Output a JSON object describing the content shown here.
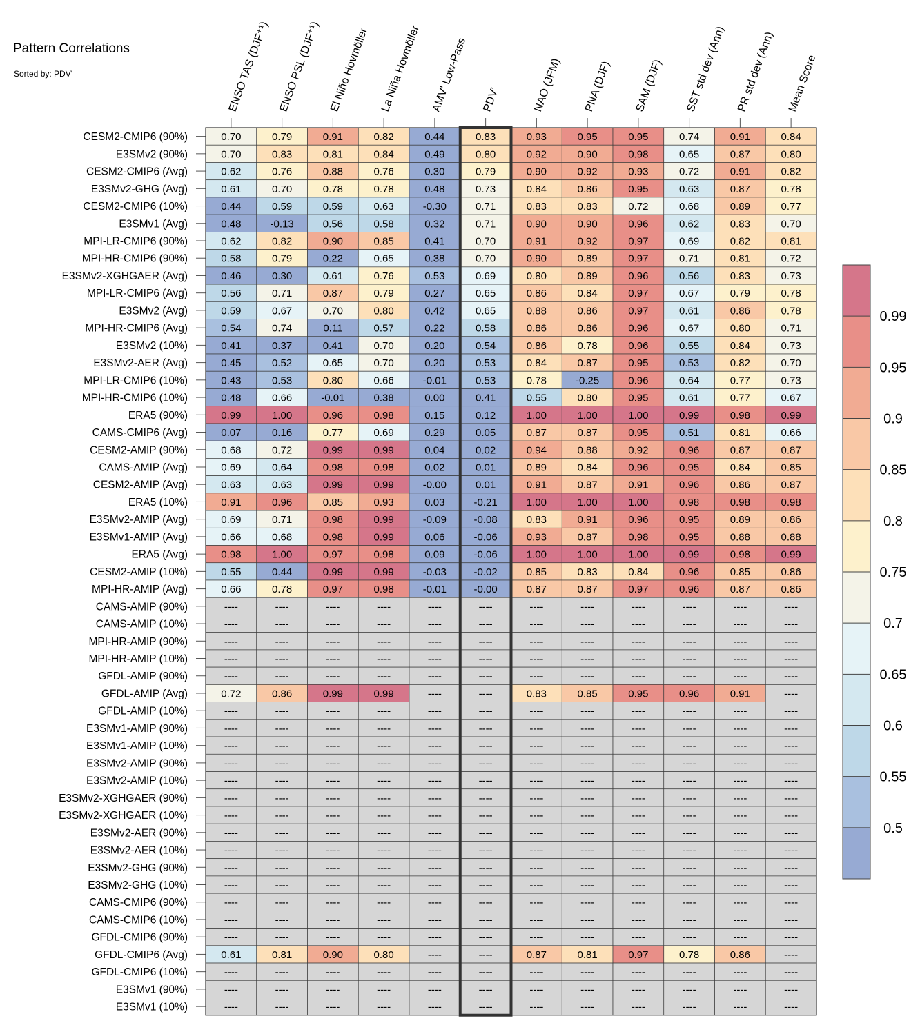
{
  "title": "Pattern Correlations",
  "subtitle": "Sorted by: PDV'",
  "chart_data": {
    "type": "heatmap",
    "title": "Pattern Correlations",
    "subtitle": "Sorted by: PDV'",
    "columns": [
      "ENSO TAS (DJF⁺¹)",
      "ENSO PSL (DJF⁺¹)",
      "El Niño Hovmöller",
      "La Niña Hovmöller",
      "AMV' Low-Pass",
      "PDV'",
      "NAO (JFM)",
      "PNA (DJF)",
      "SAM (DJF)",
      "SST std dev (Ann)",
      "PR std dev (Ann)",
      "Mean Score"
    ],
    "highlighted_column": "PDV'",
    "missing_label": "----",
    "rows": [
      {
        "name": "CESM2-CMIP6 (90%)",
        "values": [
          "0.70",
          "0.79",
          "0.91",
          "0.82",
          "0.44",
          "0.83",
          "0.93",
          "0.95",
          "0.95",
          "0.74",
          "0.91",
          "0.84"
        ]
      },
      {
        "name": "E3SMv2 (90%)",
        "values": [
          "0.70",
          "0.83",
          "0.81",
          "0.84",
          "0.49",
          "0.80",
          "0.92",
          "0.90",
          "0.98",
          "0.65",
          "0.87",
          "0.80"
        ]
      },
      {
        "name": "CESM2-CMIP6 (Avg)",
        "values": [
          "0.62",
          "0.76",
          "0.88",
          "0.76",
          "0.30",
          "0.79",
          "0.90",
          "0.92",
          "0.93",
          "0.72",
          "0.91",
          "0.82"
        ]
      },
      {
        "name": "E3SMv2-GHG (Avg)",
        "values": [
          "0.61",
          "0.70",
          "0.78",
          "0.78",
          "0.48",
          "0.73",
          "0.84",
          "0.86",
          "0.95",
          "0.63",
          "0.87",
          "0.78"
        ]
      },
      {
        "name": "CESM2-CMIP6 (10%)",
        "values": [
          "0.44",
          "0.59",
          "0.59",
          "0.63",
          "-0.30",
          "0.71",
          "0.83",
          "0.83",
          "0.72",
          "0.68",
          "0.89",
          "0.77"
        ]
      },
      {
        "name": "E3SMv1 (Avg)",
        "values": [
          "0.48",
          "-0.13",
          "0.56",
          "0.58",
          "0.32",
          "0.71",
          "0.90",
          "0.90",
          "0.96",
          "0.62",
          "0.83",
          "0.70"
        ]
      },
      {
        "name": "MPI-LR-CMIP6 (90%)",
        "values": [
          "0.62",
          "0.82",
          "0.90",
          "0.85",
          "0.41",
          "0.70",
          "0.91",
          "0.92",
          "0.97",
          "0.69",
          "0.82",
          "0.81"
        ]
      },
      {
        "name": "MPI-HR-CMIP6 (90%)",
        "values": [
          "0.58",
          "0.79",
          "0.22",
          "0.65",
          "0.38",
          "0.70",
          "0.90",
          "0.89",
          "0.97",
          "0.71",
          "0.81",
          "0.72"
        ]
      },
      {
        "name": "E3SMv2-XGHGAER (Avg)",
        "values": [
          "0.46",
          "0.30",
          "0.61",
          "0.76",
          "0.53",
          "0.69",
          "0.80",
          "0.89",
          "0.96",
          "0.56",
          "0.83",
          "0.73"
        ]
      },
      {
        "name": "MPI-LR-CMIP6 (Avg)",
        "values": [
          "0.56",
          "0.71",
          "0.87",
          "0.79",
          "0.27",
          "0.65",
          "0.86",
          "0.84",
          "0.97",
          "0.67",
          "0.79",
          "0.78"
        ]
      },
      {
        "name": "E3SMv2 (Avg)",
        "values": [
          "0.59",
          "0.67",
          "0.70",
          "0.80",
          "0.42",
          "0.65",
          "0.88",
          "0.86",
          "0.97",
          "0.61",
          "0.86",
          "0.78"
        ]
      },
      {
        "name": "MPI-HR-CMIP6 (Avg)",
        "values": [
          "0.54",
          "0.74",
          "0.11",
          "0.57",
          "0.22",
          "0.58",
          "0.86",
          "0.86",
          "0.96",
          "0.67",
          "0.80",
          "0.71"
        ]
      },
      {
        "name": "E3SMv2 (10%)",
        "values": [
          "0.41",
          "0.37",
          "0.41",
          "0.70",
          "0.20",
          "0.54",
          "0.86",
          "0.78",
          "0.96",
          "0.55",
          "0.84",
          "0.73"
        ]
      },
      {
        "name": "E3SMv2-AER (Avg)",
        "values": [
          "0.45",
          "0.52",
          "0.65",
          "0.70",
          "0.20",
          "0.53",
          "0.84",
          "0.87",
          "0.95",
          "0.53",
          "0.82",
          "0.70"
        ]
      },
      {
        "name": "MPI-LR-CMIP6 (10%)",
        "values": [
          "0.43",
          "0.53",
          "0.80",
          "0.66",
          "-0.01",
          "0.53",
          "0.78",
          "-0.25",
          "0.96",
          "0.64",
          "0.77",
          "0.73"
        ]
      },
      {
        "name": "MPI-HR-CMIP6 (10%)",
        "values": [
          "0.48",
          "0.66",
          "-0.01",
          "0.38",
          "0.00",
          "0.41",
          "0.55",
          "0.80",
          "0.95",
          "0.61",
          "0.77",
          "0.67"
        ]
      },
      {
        "name": "ERA5 (90%)",
        "values": [
          "0.99",
          "1.00",
          "0.96",
          "0.98",
          "0.15",
          "0.12",
          "1.00",
          "1.00",
          "1.00",
          "0.99",
          "0.98",
          "0.99"
        ]
      },
      {
        "name": "CAMS-CMIP6 (Avg)",
        "values": [
          "0.07",
          "0.16",
          "0.77",
          "0.69",
          "0.29",
          "0.05",
          "0.87",
          "0.87",
          "0.95",
          "0.51",
          "0.81",
          "0.66"
        ]
      },
      {
        "name": "CESM2-AMIP (90%)",
        "values": [
          "0.68",
          "0.72",
          "0.99",
          "0.99",
          "0.04",
          "0.02",
          "0.94",
          "0.88",
          "0.92",
          "0.96",
          "0.87",
          "0.87"
        ]
      },
      {
        "name": "CAMS-AMIP (Avg)",
        "values": [
          "0.69",
          "0.64",
          "0.98",
          "0.98",
          "0.02",
          "0.01",
          "0.89",
          "0.84",
          "0.96",
          "0.95",
          "0.84",
          "0.85"
        ]
      },
      {
        "name": "CESM2-AMIP (Avg)",
        "values": [
          "0.63",
          "0.63",
          "0.99",
          "0.99",
          "-0.00",
          "0.01",
          "0.91",
          "0.87",
          "0.91",
          "0.96",
          "0.86",
          "0.87"
        ]
      },
      {
        "name": "ERA5 (10%)",
        "values": [
          "0.91",
          "0.96",
          "0.85",
          "0.93",
          "0.03",
          "-0.21",
          "1.00",
          "1.00",
          "1.00",
          "0.98",
          "0.98",
          "0.98"
        ]
      },
      {
        "name": "E3SMv2-AMIP (Avg)",
        "values": [
          "0.69",
          "0.71",
          "0.98",
          "0.99",
          "-0.09",
          "-0.08",
          "0.83",
          "0.91",
          "0.96",
          "0.95",
          "0.89",
          "0.86"
        ]
      },
      {
        "name": "E3SMv1-AMIP (Avg)",
        "values": [
          "0.66",
          "0.68",
          "0.98",
          "0.99",
          "0.06",
          "-0.06",
          "0.93",
          "0.87",
          "0.98",
          "0.95",
          "0.88",
          "0.88"
        ]
      },
      {
        "name": "ERA5 (Avg)",
        "values": [
          "0.98",
          "1.00",
          "0.97",
          "0.98",
          "0.09",
          "-0.06",
          "1.00",
          "1.00",
          "1.00",
          "0.99",
          "0.98",
          "0.99"
        ]
      },
      {
        "name": "CESM2-AMIP (10%)",
        "values": [
          "0.55",
          "0.44",
          "0.99",
          "0.99",
          "-0.03",
          "-0.02",
          "0.85",
          "0.83",
          "0.84",
          "0.96",
          "0.85",
          "0.86"
        ]
      },
      {
        "name": "MPI-HR-AMIP (Avg)",
        "values": [
          "0.66",
          "0.78",
          "0.97",
          "0.98",
          "-0.01",
          "-0.00",
          "0.87",
          "0.87",
          "0.97",
          "0.96",
          "0.87",
          "0.86"
        ]
      },
      {
        "name": "CAMS-AMIP (90%)",
        "values": [
          null,
          null,
          null,
          null,
          null,
          null,
          null,
          null,
          null,
          null,
          null,
          null
        ]
      },
      {
        "name": "CAMS-AMIP (10%)",
        "values": [
          null,
          null,
          null,
          null,
          null,
          null,
          null,
          null,
          null,
          null,
          null,
          null
        ]
      },
      {
        "name": "MPI-HR-AMIP (90%)",
        "values": [
          null,
          null,
          null,
          null,
          null,
          null,
          null,
          null,
          null,
          null,
          null,
          null
        ]
      },
      {
        "name": "MPI-HR-AMIP (10%)",
        "values": [
          null,
          null,
          null,
          null,
          null,
          null,
          null,
          null,
          null,
          null,
          null,
          null
        ]
      },
      {
        "name": "GFDL-AMIP (90%)",
        "values": [
          null,
          null,
          null,
          null,
          null,
          null,
          null,
          null,
          null,
          null,
          null,
          null
        ]
      },
      {
        "name": "GFDL-AMIP (Avg)",
        "values": [
          "0.72",
          "0.86",
          "0.99",
          "0.99",
          null,
          null,
          "0.83",
          "0.85",
          "0.95",
          "0.96",
          "0.91",
          null
        ]
      },
      {
        "name": "GFDL-AMIP (10%)",
        "values": [
          null,
          null,
          null,
          null,
          null,
          null,
          null,
          null,
          null,
          null,
          null,
          null
        ]
      },
      {
        "name": "E3SMv1-AMIP (90%)",
        "values": [
          null,
          null,
          null,
          null,
          null,
          null,
          null,
          null,
          null,
          null,
          null,
          null
        ]
      },
      {
        "name": "E3SMv1-AMIP (10%)",
        "values": [
          null,
          null,
          null,
          null,
          null,
          null,
          null,
          null,
          null,
          null,
          null,
          null
        ]
      },
      {
        "name": "E3SMv2-AMIP (90%)",
        "values": [
          null,
          null,
          null,
          null,
          null,
          null,
          null,
          null,
          null,
          null,
          null,
          null
        ]
      },
      {
        "name": "E3SMv2-AMIP (10%)",
        "values": [
          null,
          null,
          null,
          null,
          null,
          null,
          null,
          null,
          null,
          null,
          null,
          null
        ]
      },
      {
        "name": "E3SMv2-XGHGAER (90%)",
        "values": [
          null,
          null,
          null,
          null,
          null,
          null,
          null,
          null,
          null,
          null,
          null,
          null
        ]
      },
      {
        "name": "E3SMv2-XGHGAER (10%)",
        "values": [
          null,
          null,
          null,
          null,
          null,
          null,
          null,
          null,
          null,
          null,
          null,
          null
        ]
      },
      {
        "name": "E3SMv2-AER (90%)",
        "values": [
          null,
          null,
          null,
          null,
          null,
          null,
          null,
          null,
          null,
          null,
          null,
          null
        ]
      },
      {
        "name": "E3SMv2-AER (10%)",
        "values": [
          null,
          null,
          null,
          null,
          null,
          null,
          null,
          null,
          null,
          null,
          null,
          null
        ]
      },
      {
        "name": "E3SMv2-GHG (90%)",
        "values": [
          null,
          null,
          null,
          null,
          null,
          null,
          null,
          null,
          null,
          null,
          null,
          null
        ]
      },
      {
        "name": "E3SMv2-GHG (10%)",
        "values": [
          null,
          null,
          null,
          null,
          null,
          null,
          null,
          null,
          null,
          null,
          null,
          null
        ]
      },
      {
        "name": "CAMS-CMIP6 (90%)",
        "values": [
          null,
          null,
          null,
          null,
          null,
          null,
          null,
          null,
          null,
          null,
          null,
          null
        ]
      },
      {
        "name": "CAMS-CMIP6 (10%)",
        "values": [
          null,
          null,
          null,
          null,
          null,
          null,
          null,
          null,
          null,
          null,
          null,
          null
        ]
      },
      {
        "name": "GFDL-CMIP6 (90%)",
        "values": [
          null,
          null,
          null,
          null,
          null,
          null,
          null,
          null,
          null,
          null,
          null,
          null
        ]
      },
      {
        "name": "GFDL-CMIP6 (Avg)",
        "values": [
          "0.61",
          "0.81",
          "0.90",
          "0.80",
          null,
          null,
          "0.87",
          "0.81",
          "0.97",
          "0.78",
          "0.86",
          null
        ]
      },
      {
        "name": "GFDL-CMIP6 (10%)",
        "values": [
          null,
          null,
          null,
          null,
          null,
          null,
          null,
          null,
          null,
          null,
          null,
          null
        ]
      },
      {
        "name": "E3SMv1 (90%)",
        "values": [
          null,
          null,
          null,
          null,
          null,
          null,
          null,
          null,
          null,
          null,
          null,
          null
        ]
      },
      {
        "name": "E3SMv1 (10%)",
        "values": [
          null,
          null,
          null,
          null,
          null,
          null,
          null,
          null,
          null,
          null,
          null,
          null
        ]
      }
    ],
    "colorbar": {
      "ticks": [
        "0.5",
        "0.55",
        "0.6",
        "0.65",
        "0.7",
        "0.75",
        "0.8",
        "0.85",
        "0.9",
        "0.95",
        "0.99"
      ],
      "levels": [
        0.45,
        0.5,
        0.55,
        0.6,
        0.65,
        0.7,
        0.75,
        0.8,
        0.85,
        0.9,
        0.95,
        0.99,
        1.0
      ],
      "colors": [
        "#97aad3",
        "#a9c0df",
        "#bed8e8",
        "#d4e8f0",
        "#e6f3f7",
        "#f4f3e8",
        "#fdf1cc",
        "#fde0b9",
        "#f9c8a6",
        "#f1ab93",
        "#e88f88",
        "#d5768a"
      ],
      "missing_color": "#d6d6d6"
    }
  }
}
